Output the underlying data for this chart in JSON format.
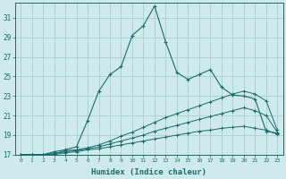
{
  "xlabel": "Humidex (Indice chaleur)",
  "background_color": "#ceeaea",
  "grid_color": "#aacfcf",
  "line_color": "#1a6b6b",
  "xlim": [
    -0.5,
    23.5
  ],
  "ylim": [
    17,
    32.5
  ],
  "xticks": [
    0,
    1,
    2,
    3,
    4,
    5,
    6,
    7,
    8,
    9,
    10,
    11,
    12,
    13,
    14,
    15,
    16,
    17,
    18,
    19,
    20,
    21,
    22,
    23
  ],
  "yticks": [
    17,
    19,
    21,
    23,
    25,
    27,
    29,
    31
  ],
  "curve1_x": [
    0,
    1,
    2,
    3,
    4,
    5,
    6,
    7,
    8,
    9,
    10,
    11,
    12,
    13,
    14,
    15,
    16,
    17,
    18,
    19,
    20,
    21,
    22,
    23
  ],
  "curve1_y": [
    17,
    17,
    17,
    17.3,
    17.5,
    17.8,
    20.5,
    23.5,
    25.2,
    26.0,
    29.2,
    30.2,
    32.2,
    28.5,
    25.4,
    24.7,
    25.2,
    25.7,
    23.9,
    23.1,
    23.0,
    22.7,
    19.4,
    19.2
  ],
  "curve2_x": [
    0,
    1,
    2,
    3,
    4,
    5,
    6,
    7,
    8,
    9,
    10,
    11,
    12,
    13,
    14,
    15,
    16,
    17,
    18,
    19,
    20,
    21,
    22,
    23
  ],
  "curve2_y": [
    17,
    17,
    17,
    17.1,
    17.4,
    17.5,
    17.7,
    18.0,
    18.4,
    18.9,
    19.3,
    19.8,
    20.3,
    20.8,
    21.2,
    21.6,
    22.0,
    22.4,
    22.8,
    23.2,
    23.5,
    23.2,
    22.5,
    19.5
  ],
  "curve3_x": [
    0,
    1,
    2,
    3,
    4,
    5,
    6,
    7,
    8,
    9,
    10,
    11,
    12,
    13,
    14,
    15,
    16,
    17,
    18,
    19,
    20,
    21,
    22,
    23
  ],
  "curve3_y": [
    17,
    17,
    17,
    17.1,
    17.3,
    17.4,
    17.6,
    17.8,
    18.1,
    18.4,
    18.7,
    19.0,
    19.4,
    19.7,
    20.0,
    20.3,
    20.6,
    20.9,
    21.2,
    21.5,
    21.8,
    21.5,
    21.0,
    19.3
  ],
  "curve4_x": [
    0,
    1,
    2,
    3,
    4,
    5,
    6,
    7,
    8,
    9,
    10,
    11,
    12,
    13,
    14,
    15,
    16,
    17,
    18,
    19,
    20,
    21,
    22,
    23
  ],
  "curve4_y": [
    17,
    17,
    17,
    17.0,
    17.2,
    17.3,
    17.5,
    17.6,
    17.8,
    18.0,
    18.2,
    18.4,
    18.6,
    18.8,
    19.0,
    19.2,
    19.4,
    19.5,
    19.7,
    19.8,
    19.9,
    19.7,
    19.5,
    19.1
  ]
}
